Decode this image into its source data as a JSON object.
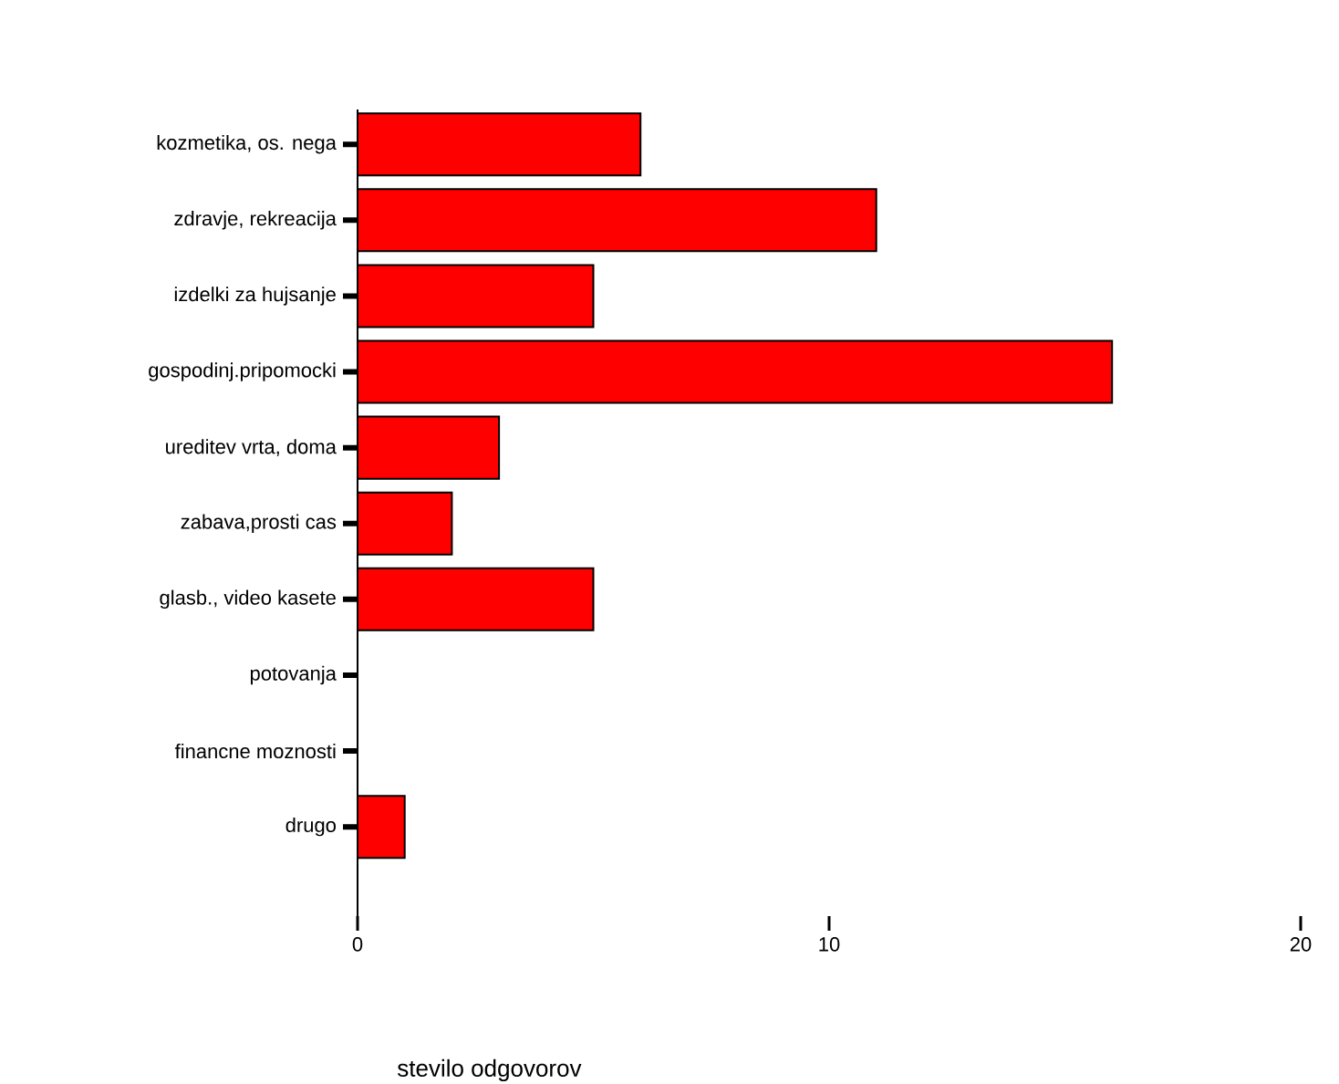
{
  "chart_data": {
    "type": "bar",
    "orientation": "horizontal",
    "xlabel": "stevilo odgovorov",
    "categories": [
      "kozmetika, os. nega",
      "zdravje, rekreacija",
      "izdelki za hujsanje",
      "gospodinj.pripomocki",
      "ureditev vrta, doma",
      "zabava,prosti cas",
      "glasb., video kasete",
      "potovanja",
      "financne moznosti",
      "drugo"
    ],
    "values": [
      6,
      11,
      5,
      16,
      3,
      2,
      5,
      0,
      0,
      1
    ],
    "color": "#ff0000",
    "xlim": [
      0,
      20
    ],
    "xticks": [
      0,
      10,
      20
    ],
    "grid": false
  }
}
